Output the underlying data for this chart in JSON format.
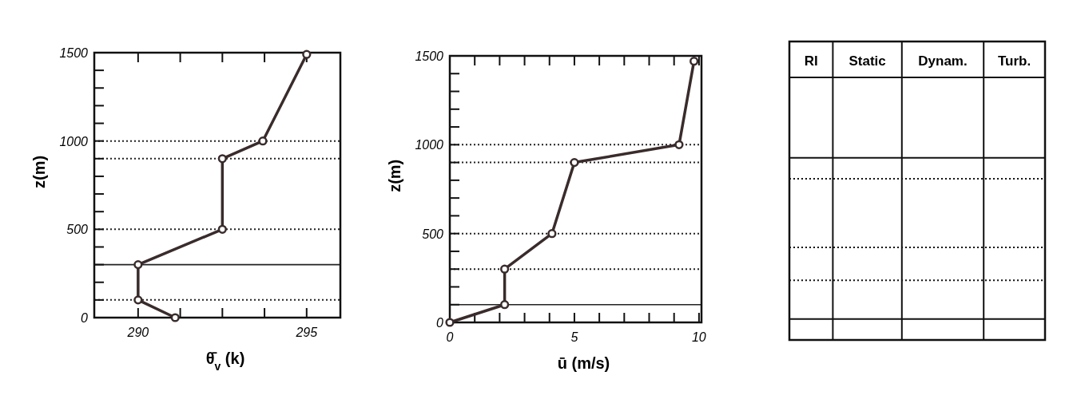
{
  "chart_data": [
    {
      "type": "line",
      "xlabel": "θ̄$_{v}$ (k)",
      "ylabel": "z(m)",
      "xlim": [
        288.7,
        296
      ],
      "ylim": [
        0,
        1500
      ],
      "xticks": [
        290,
        {
          "value": 291.25,
          "label": null
        },
        {
          "value": 292.5,
          "label": null
        },
        {
          "value": 293.75,
          "label": null
        },
        295
      ],
      "yticks": [
        0,
        {
          "value": 100,
          "label": null
        },
        {
          "value": 200,
          "label": null
        },
        {
          "value": 300,
          "label": null
        },
        {
          "value": 400,
          "label": null
        },
        500,
        {
          "value": 600,
          "label": null
        },
        {
          "value": 700,
          "label": null
        },
        {
          "value": 800,
          "label": null
        },
        {
          "value": 900,
          "label": null
        },
        1000,
        {
          "value": 1100,
          "label": null
        },
        {
          "value": 1200,
          "label": null
        },
        {
          "value": 1300,
          "label": null
        },
        {
          "value": 1400,
          "label": null
        },
        1500
      ],
      "series": [
        {
          "color": "#3a2c2c",
          "x": [
            291.1,
            290,
            290,
            292.5,
            292.5,
            293.7,
            295
          ],
          "values": [
            0,
            100,
            300,
            500,
            900,
            1000,
            1490
          ]
        }
      ],
      "marker": "circle",
      "line_style": "solid",
      "grid": false,
      "ref_lines": [
        {
          "axis": "y",
          "value": 100,
          "line_style": "dotted",
          "color": "#222222"
        },
        {
          "axis": "y",
          "value": 300,
          "line_style": "solid",
          "color": "#222222"
        },
        {
          "axis": "y",
          "value": 500,
          "line_style": "dotted",
          "color": "#222222"
        },
        {
          "axis": "y",
          "value": 900,
          "line_style": "dotted",
          "color": "#222222"
        },
        {
          "axis": "y",
          "value": 1000,
          "line_style": "dotted",
          "color": "#222222"
        }
      ]
    },
    {
      "type": "line",
      "xlabel": "ū (m/s)",
      "ylabel": "z(m)",
      "xlim": [
        0,
        10.1
      ],
      "ylim": [
        0,
        1500
      ],
      "xticks": [
        0,
        {
          "value": 1,
          "label": null
        },
        {
          "value": 2,
          "label": null
        },
        {
          "value": 3,
          "label": null
        },
        {
          "value": 4,
          "label": null
        },
        5,
        {
          "value": 6,
          "label": null
        },
        {
          "value": 7,
          "label": null
        },
        {
          "value": 8,
          "label": null
        },
        {
          "value": 9,
          "label": null
        },
        10
      ],
      "yticks": [
        0,
        {
          "value": 100,
          "label": null
        },
        {
          "value": 200,
          "label": null
        },
        {
          "value": 300,
          "label": null
        },
        {
          "value": 400,
          "label": null
        },
        500,
        {
          "value": 600,
          "label": null
        },
        {
          "value": 700,
          "label": null
        },
        {
          "value": 800,
          "label": null
        },
        {
          "value": 900,
          "label": null
        },
        1000,
        {
          "value": 1100,
          "label": null
        },
        {
          "value": 1200,
          "label": null
        },
        {
          "value": 1300,
          "label": null
        },
        {
          "value": 1400,
          "label": null
        },
        1500
      ],
      "series": [
        {
          "color": "#3a2c2c",
          "x": [
            0,
            2.2,
            2.2,
            4.1,
            5,
            9.2,
            9.8
          ],
          "values": [
            0,
            100,
            300,
            500,
            900,
            1000,
            1470
          ]
        }
      ],
      "marker": "circle",
      "line_style": "solid",
      "grid": false,
      "ref_lines": [
        {
          "axis": "y",
          "value": 100,
          "line_style": "solid",
          "color": "#222222"
        },
        {
          "axis": "y",
          "value": 300,
          "line_style": "dotted",
          "color": "#222222"
        },
        {
          "axis": "y",
          "value": 500,
          "line_style": "dotted",
          "color": "#222222"
        },
        {
          "axis": "y",
          "value": 900,
          "line_style": "dotted",
          "color": "#222222"
        },
        {
          "axis": "y",
          "value": 1000,
          "line_style": "dotted",
          "color": "#222222"
        }
      ]
    },
    {
      "type": "other",
      "categories": [
        "RI",
        "Static",
        "Dynam.",
        "Turb."
      ]
    }
  ]
}
